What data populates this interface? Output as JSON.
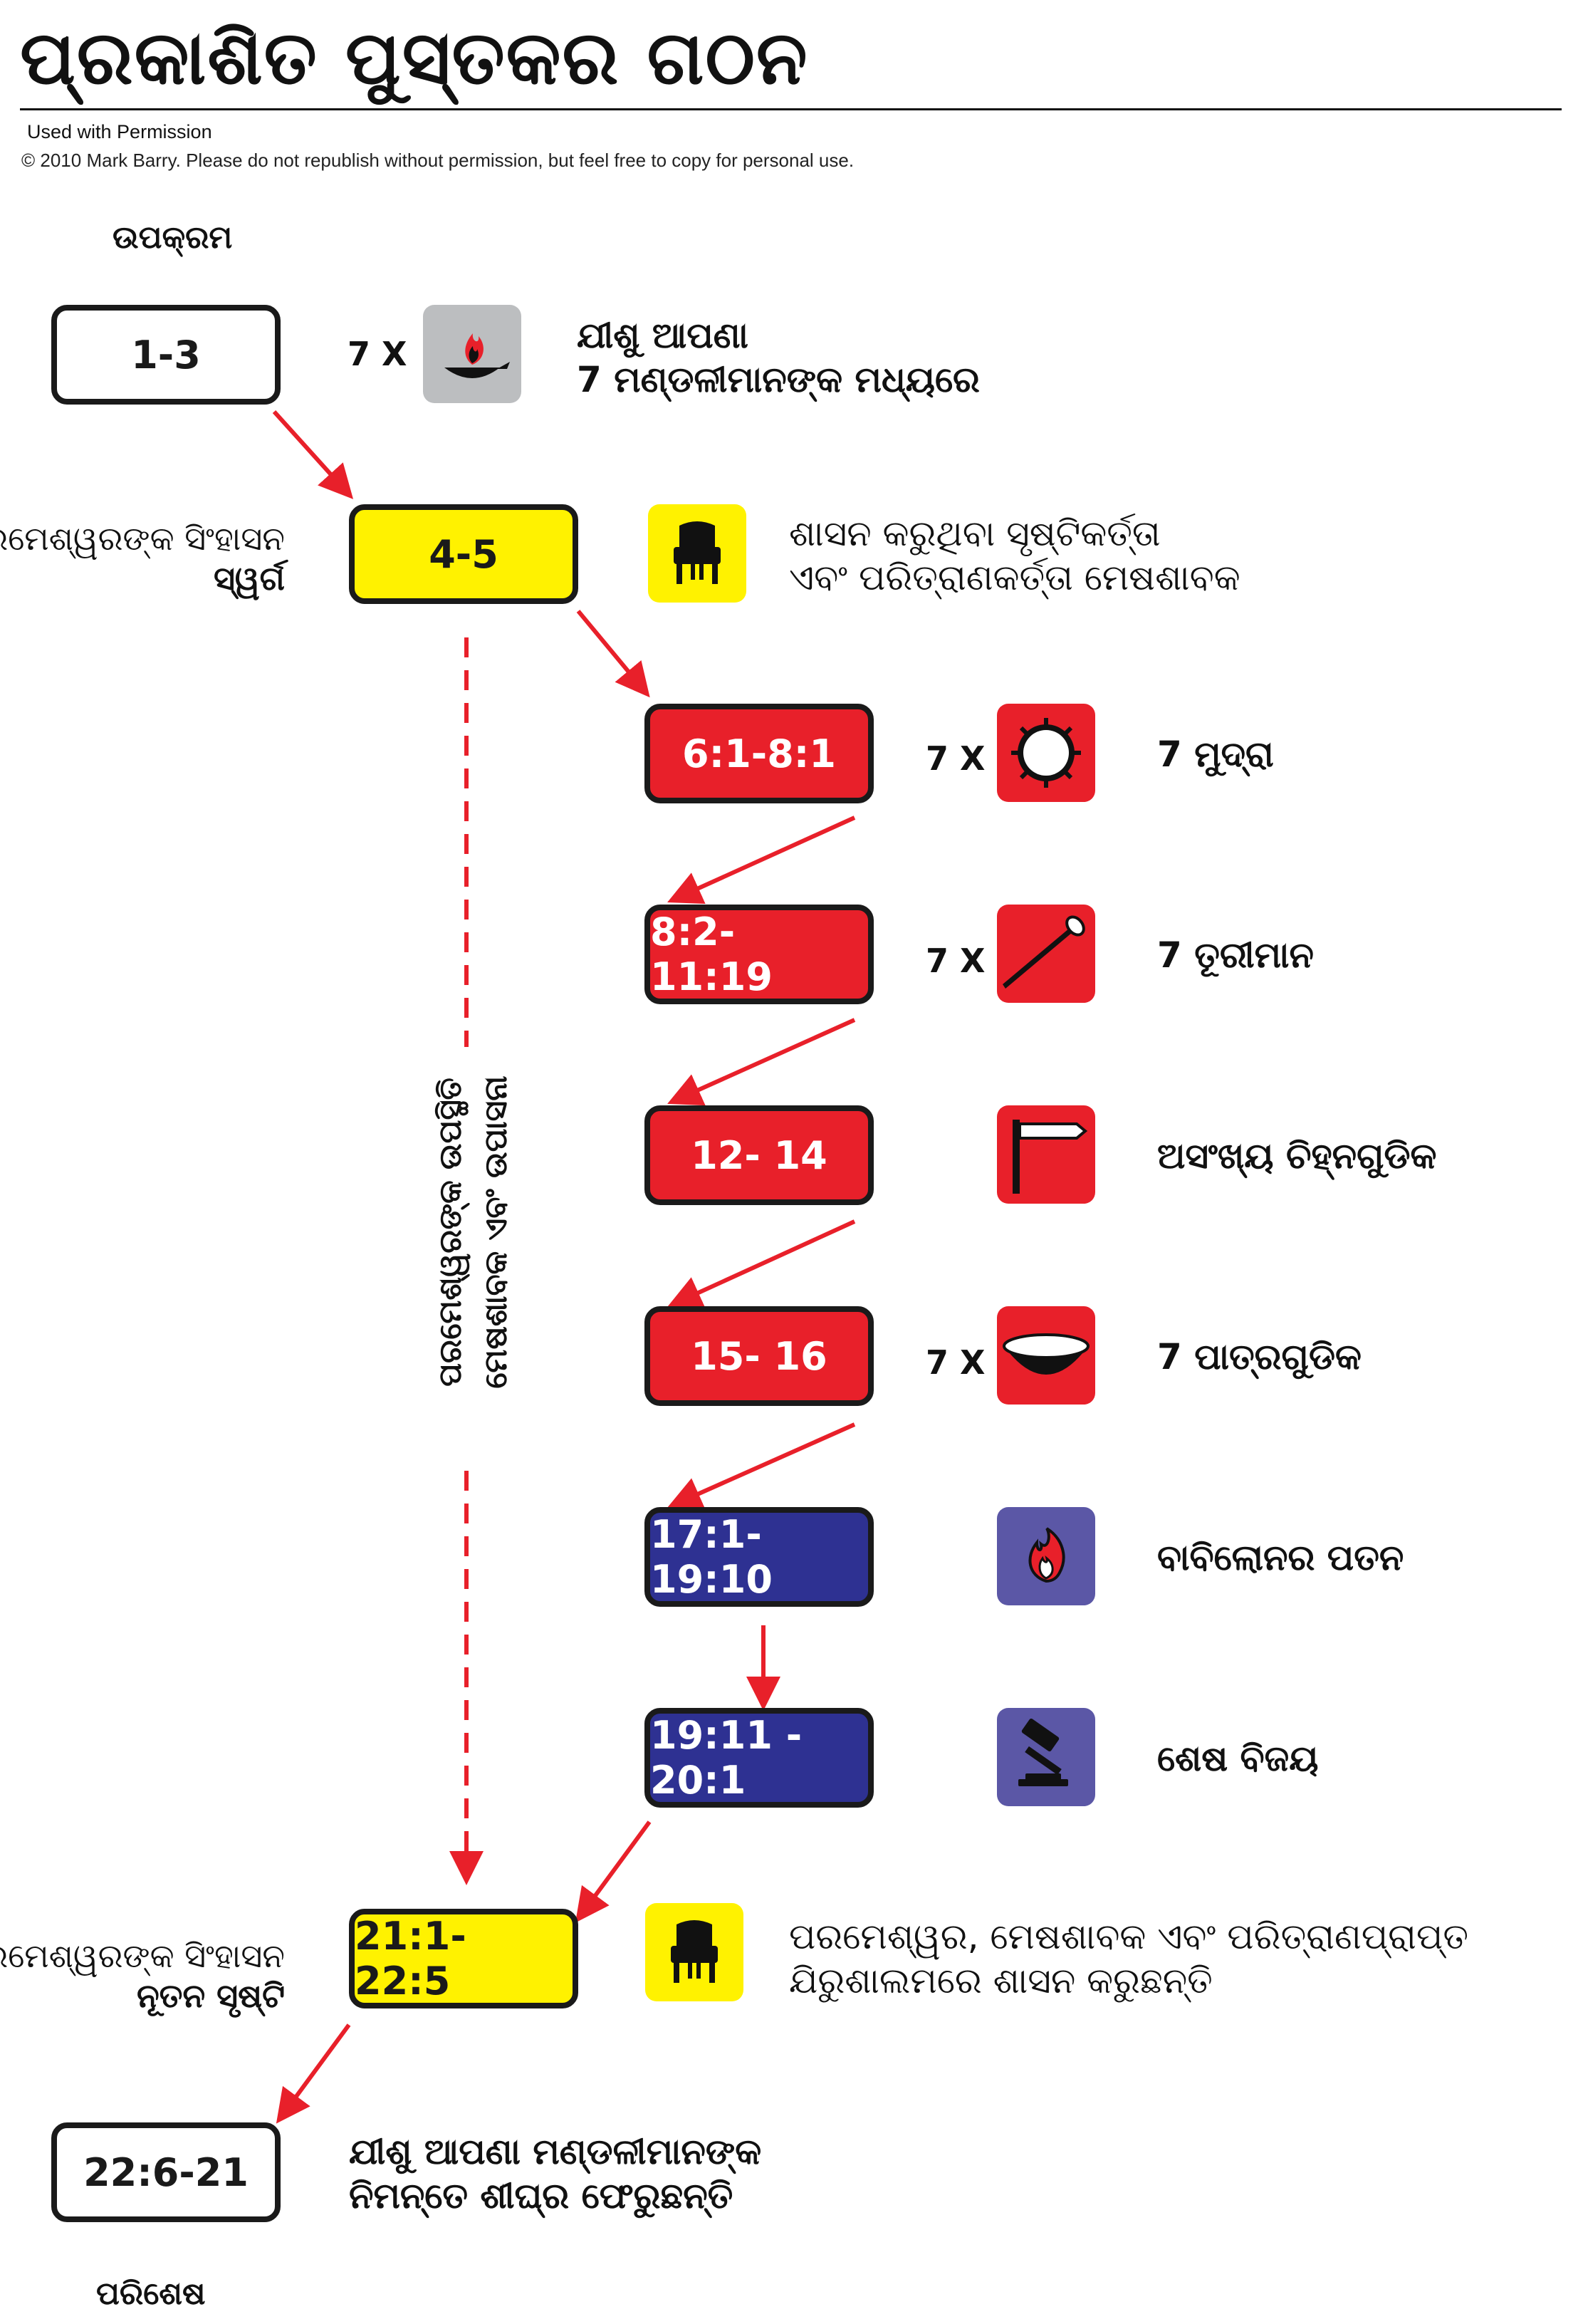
{
  "header": {
    "title": "ପ୍ରକାଶିତ ପୁସ୍ତକର ଗଠନ",
    "permission": "Used with Permission",
    "copyright": "© 2010 Mark Barry.  Please do not republish without permission, but feel free to copy for personal use."
  },
  "sections": {
    "prologue": "ଉପକ୍ରମ",
    "epilogue": "ପରିଶେଷ"
  },
  "side_labels": {
    "throne_heaven_line1": "ପରମେଶ୍ୱରଙ୍କ ସିଂହାସନ",
    "throne_heaven_line2": "ସ୍ୱର୍ଗ",
    "throne_new_line1": "ପରମେଶ୍ୱରଙ୍କ ସିଂହାସନ",
    "throne_new_line2": "ନୂତନ ସୃଷ୍ଟି"
  },
  "vertical_text": {
    "line1": "ପରମେଶ୍ୱରଙ୍କ ଉପସ୍ଥିତି",
    "line2": "ମେଷଶାବକ ଏବଂ ଉପାସନା"
  },
  "boxes": {
    "b1": "1-3",
    "b2": "4-5",
    "b3": "6:1-8:1",
    "b4": "8:2- 11:19",
    "b5": "12- 14",
    "b6": "15- 16",
    "b7": "17:1- 19:10",
    "b8": "19:11 - 20:1",
    "b9": "21:1- 22:5",
    "b10": "22:6-21"
  },
  "multipliers": {
    "m1": "7 X",
    "m3": "7 X",
    "m4": "7 X",
    "m6": "7 X"
  },
  "descriptions": {
    "d1_line1": "ଯୀଶୁ ଆପଣା",
    "d1_line2": "7 ମଣ୍ଡଳୀମାନଙ୍କ ମଧ୍ୟରେ",
    "d2_line1": "ଶାସନ କରୁଥିବା ସୃଷ୍ଟିକର୍ତ୍ତା",
    "d2_line2": "ଏବଂ ପରିତ୍ରାଣକର୍ତ୍ତା ମେଷଶାବକ",
    "d3": "7 ମୁଦ୍ରା",
    "d4": "7 ତୂରୀମାନ",
    "d5": "ଅସଂଖ୍ୟ ଚିହ୍ନଗୁଡିକ",
    "d6": "7 ପାତ୍ରଗୁଡିକ",
    "d7": "ବାବିଲୋନର ପତନ",
    "d8": "ଶେଷ ବିଜୟ",
    "d9_line1": "ପରମେଶ୍ୱର, ମେଷଶାବକ ଏବଂ ପରିତ୍ରାଣପ୍ରାପ୍ତ",
    "d9_line2": "ଯିରୁଶାଲମରେ ଶାସନ କରୁଛନ୍ତି",
    "d10_line1": "ଯୀଶୁ ଆପଣା ମଣ୍ଡଳୀମାନଙ୍କ",
    "d10_line2": "ନିମନ୍ତେ ଶୀଘ୍ର ଫେରୁଛନ୍ତି"
  },
  "icons": {
    "i1": "lampstand-icon",
    "i2": "throne-icon",
    "i3": "seal-icon",
    "i4": "trumpet-icon",
    "i5": "signpost-icon",
    "i6": "bowl-icon",
    "i7": "burning-city-icon",
    "i8": "gavel-icon",
    "i9": "throne-icon"
  },
  "colors": {
    "white": "#ffffff",
    "yellow": "#fff200",
    "red": "#e8202a",
    "blue": "#2e3192",
    "icon_gray": "#bcbec0",
    "icon_red": "#e8202a",
    "icon_purple": "#5b57a6",
    "icon_yellow": "#fff200",
    "arrow": "#e8202a"
  }
}
